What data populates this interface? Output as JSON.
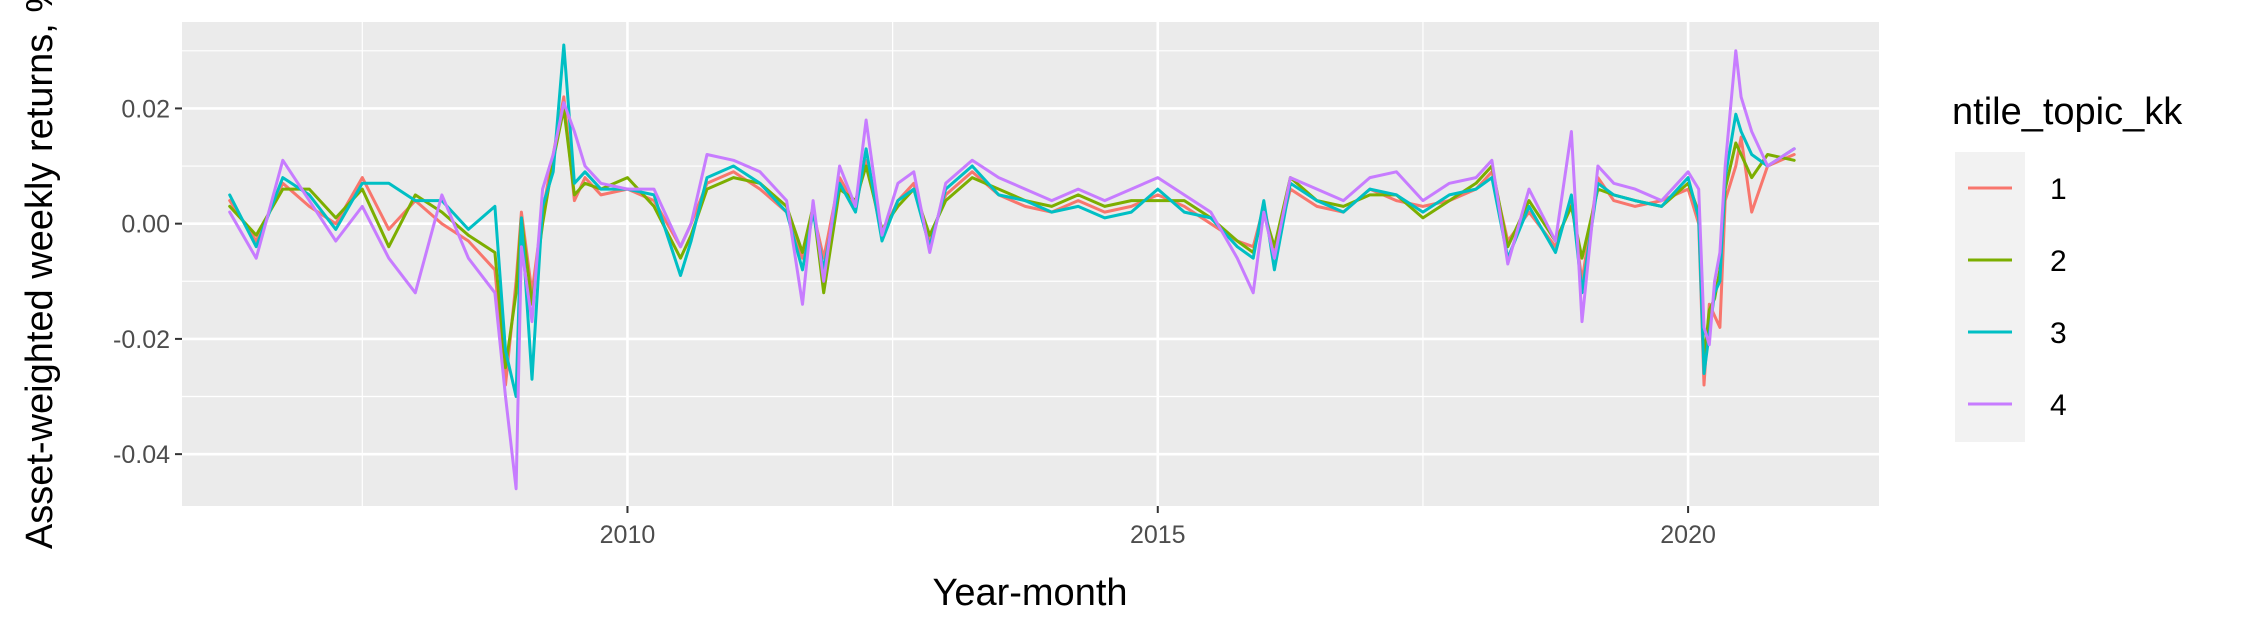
{
  "chart_data": {
    "type": "line",
    "title": "",
    "xlabel": "Year-month",
    "ylabel": "Asset-weighted weekly returns, %",
    "xlim": [
      2005.8,
      2021.8
    ],
    "ylim": [
      -0.049,
      0.035
    ],
    "x_ticks": [
      2010,
      2015,
      2020
    ],
    "x_tick_labels": [
      "2010",
      "2015",
      "2020"
    ],
    "y_ticks": [
      0.02,
      0.0,
      -0.02,
      -0.04
    ],
    "y_tick_labels": [
      "0.02",
      "0.00",
      "-0.02",
      "-0.04"
    ],
    "grid": true,
    "legend": {
      "title": "ntile_topic_kk",
      "position": "right"
    },
    "colors": [
      "#F8766D",
      "#7CAE00",
      "#00BFC4",
      "#C77CFF"
    ],
    "x": [
      2006.25,
      2006.5,
      2006.75,
      2007.0,
      2007.25,
      2007.5,
      2007.75,
      2008.0,
      2008.25,
      2008.5,
      2008.75,
      2008.85,
      2008.95,
      2009.0,
      2009.1,
      2009.2,
      2009.3,
      2009.4,
      2009.5,
      2009.6,
      2009.75,
      2010.0,
      2010.25,
      2010.5,
      2010.6,
      2010.75,
      2011.0,
      2011.25,
      2011.5,
      2011.65,
      2011.75,
      2011.85,
      2012.0,
      2012.15,
      2012.25,
      2012.4,
      2012.55,
      2012.7,
      2012.85,
      2013.0,
      2013.25,
      2013.5,
      2013.75,
      2014.0,
      2014.25,
      2014.5,
      2014.75,
      2015.0,
      2015.25,
      2015.5,
      2015.75,
      2015.9,
      2016.0,
      2016.1,
      2016.25,
      2016.5,
      2016.75,
      2017.0,
      2017.25,
      2017.5,
      2017.75,
      2018.0,
      2018.15,
      2018.3,
      2018.5,
      2018.75,
      2018.9,
      2019.0,
      2019.15,
      2019.3,
      2019.5,
      2019.75,
      2020.0,
      2020.1,
      2020.15,
      2020.2,
      2020.25,
      2020.3,
      2020.35,
      2020.45,
      2020.5,
      2020.6,
      2020.75,
      2021.0
    ],
    "series": [
      {
        "name": "1",
        "values": [
          0.004,
          -0.003,
          0.007,
          0.003,
          0.0,
          0.008,
          -0.001,
          0.004,
          0.0,
          -0.003,
          -0.008,
          -0.028,
          -0.01,
          0.002,
          -0.012,
          0.002,
          0.012,
          0.022,
          0.004,
          0.008,
          0.005,
          0.006,
          0.004,
          -0.004,
          0.0,
          0.007,
          0.009,
          0.006,
          0.002,
          -0.006,
          0.002,
          -0.006,
          0.008,
          0.003,
          0.011,
          -0.002,
          0.004,
          0.007,
          -0.003,
          0.005,
          0.009,
          0.005,
          0.003,
          0.002,
          0.004,
          0.002,
          0.003,
          0.005,
          0.003,
          0.0,
          -0.003,
          -0.004,
          0.003,
          -0.005,
          0.006,
          0.003,
          0.002,
          0.006,
          0.004,
          0.003,
          0.004,
          0.006,
          0.009,
          -0.003,
          0.002,
          -0.004,
          0.004,
          -0.01,
          0.008,
          0.004,
          0.003,
          0.004,
          0.006,
          0.0,
          -0.028,
          -0.014,
          -0.016,
          -0.018,
          0.004,
          0.01,
          0.015,
          0.002,
          0.01,
          0.012
        ]
      },
      {
        "name": "2",
        "values": [
          0.003,
          -0.002,
          0.006,
          0.006,
          0.001,
          0.006,
          -0.004,
          0.005,
          0.002,
          -0.002,
          -0.005,
          -0.025,
          -0.012,
          0.001,
          -0.014,
          0.0,
          0.011,
          0.02,
          0.005,
          0.007,
          0.006,
          0.008,
          0.003,
          -0.006,
          -0.002,
          0.006,
          0.008,
          0.007,
          0.003,
          -0.005,
          0.003,
          -0.012,
          0.006,
          0.004,
          0.01,
          -0.001,
          0.003,
          0.006,
          -0.002,
          0.004,
          0.008,
          0.006,
          0.004,
          0.003,
          0.005,
          0.003,
          0.004,
          0.004,
          0.004,
          0.001,
          -0.003,
          -0.005,
          0.002,
          -0.004,
          0.008,
          0.004,
          0.003,
          0.005,
          0.005,
          0.001,
          0.004,
          0.007,
          0.01,
          -0.004,
          0.004,
          -0.003,
          0.003,
          -0.006,
          0.006,
          0.005,
          0.004,
          0.003,
          0.007,
          0.002,
          -0.024,
          -0.015,
          -0.013,
          -0.008,
          0.006,
          0.014,
          0.012,
          0.008,
          0.012,
          0.011
        ]
      },
      {
        "name": "3",
        "values": [
          0.005,
          -0.004,
          0.008,
          0.005,
          -0.001,
          0.007,
          0.007,
          0.004,
          0.004,
          -0.001,
          0.003,
          -0.022,
          -0.03,
          0.001,
          -0.027,
          0.003,
          0.009,
          0.031,
          0.007,
          0.009,
          0.006,
          0.006,
          0.005,
          -0.009,
          -0.003,
          0.008,
          0.01,
          0.007,
          0.002,
          -0.008,
          0.002,
          -0.008,
          0.007,
          0.002,
          0.013,
          -0.003,
          0.004,
          0.006,
          -0.004,
          0.006,
          0.01,
          0.005,
          0.004,
          0.002,
          0.003,
          0.001,
          0.002,
          0.006,
          0.002,
          0.001,
          -0.004,
          -0.006,
          0.004,
          -0.008,
          0.007,
          0.004,
          0.002,
          0.006,
          0.005,
          0.002,
          0.005,
          0.006,
          0.008,
          -0.006,
          0.003,
          -0.005,
          0.005,
          -0.012,
          0.007,
          0.005,
          0.004,
          0.003,
          0.008,
          0.001,
          -0.026,
          -0.019,
          -0.012,
          -0.01,
          0.008,
          0.019,
          0.016,
          0.012,
          0.01,
          0.013
        ]
      },
      {
        "name": "4",
        "values": [
          0.002,
          -0.006,
          0.011,
          0.004,
          -0.003,
          0.003,
          -0.006,
          -0.012,
          0.005,
          -0.006,
          -0.012,
          -0.03,
          -0.046,
          -0.004,
          -0.017,
          0.006,
          0.012,
          0.021,
          0.016,
          0.01,
          0.007,
          0.006,
          0.006,
          -0.004,
          0.0,
          0.012,
          0.011,
          0.009,
          0.004,
          -0.014,
          0.004,
          -0.01,
          0.01,
          0.003,
          0.018,
          -0.002,
          0.007,
          0.009,
          -0.005,
          0.007,
          0.011,
          0.008,
          0.006,
          0.004,
          0.006,
          0.004,
          0.006,
          0.008,
          0.005,
          0.002,
          -0.006,
          -0.012,
          0.002,
          -0.006,
          0.008,
          0.006,
          0.004,
          0.008,
          0.009,
          0.004,
          0.007,
          0.008,
          0.011,
          -0.007,
          0.006,
          -0.003,
          0.016,
          -0.017,
          0.01,
          0.007,
          0.006,
          0.004,
          0.009,
          0.006,
          -0.018,
          -0.021,
          -0.01,
          -0.005,
          0.01,
          0.03,
          0.022,
          0.016,
          0.01,
          0.013
        ]
      }
    ]
  }
}
